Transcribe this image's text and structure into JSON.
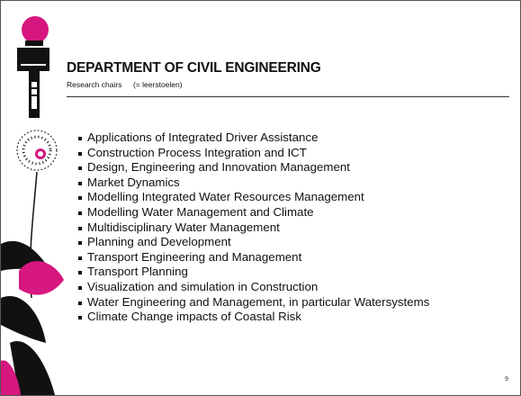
{
  "header": {
    "title": "DEPARTMENT OF CIVIL ENGINEERING",
    "subtitle": "Research chairs",
    "note": "(= leerstoelen)"
  },
  "list": {
    "items": [
      "Applications of Integrated Driver Assistance",
      "Construction Process Integration and ICT",
      "Design, Engineering and Innovation Management",
      "Market Dynamics",
      "Modelling Integrated Water Resources Management",
      "Modelling Water Management and Climate",
      "Multidisciplinary Water Management",
      "Planning and Development",
      "Transport Engineering and Management",
      "Transport Planning",
      "Visualization and simulation in Construction",
      "Water Engineering and Management, in particular Watersystems",
      "Climate Change impacts of Coastal Risk"
    ]
  },
  "footer": {
    "page": "9"
  }
}
